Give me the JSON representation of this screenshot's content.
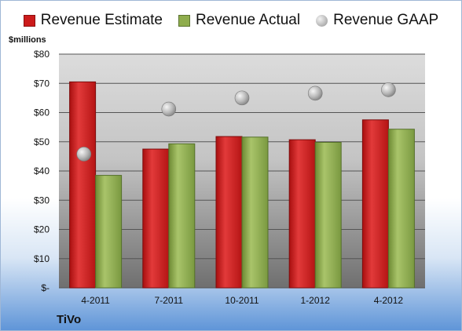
{
  "legend": {
    "estimate": "Revenue Estimate",
    "actual": "Revenue Actual",
    "gaap": "Revenue GAAP"
  },
  "unit_label": "$millions",
  "company": "TiVo",
  "colors": {
    "estimate": "#cc1b1b",
    "actual": "#8fad4d",
    "gaap": "#b0b0b0"
  },
  "chart_data": {
    "type": "bar",
    "categories": [
      "4-2011",
      "7-2011",
      "10-2011",
      "1-2012",
      "4-2012"
    ],
    "series": [
      {
        "name": "Revenue Estimate",
        "type": "bar",
        "values": [
          70.5,
          47.5,
          51.8,
          50.7,
          57.5
        ]
      },
      {
        "name": "Revenue Actual",
        "type": "bar",
        "values": [
          38.5,
          49.3,
          51.6,
          49.8,
          54.3
        ]
      },
      {
        "name": "Revenue GAAP",
        "type": "scatter",
        "values": [
          45.8,
          61.2,
          65.0,
          66.6,
          67.8
        ]
      }
    ],
    "yticks": [
      "$-",
      "$10",
      "$20",
      "$30",
      "$40",
      "$50",
      "$60",
      "$70",
      "$80"
    ],
    "ylim": [
      0,
      80
    ],
    "ylabel": "$millions",
    "grid": true,
    "legend_position": "top"
  }
}
